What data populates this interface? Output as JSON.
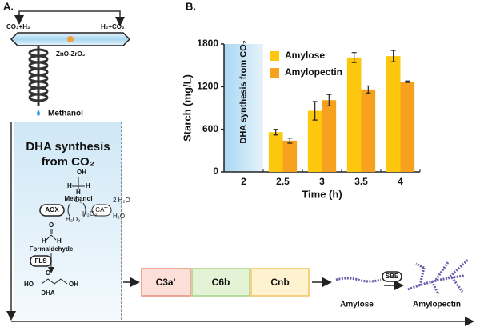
{
  "panel_labels": [
    "A.",
    "B."
  ],
  "diagram": {
    "feed_left": "CO₂+H₂",
    "feed_right": "H₂+CO₂",
    "catalyst": "ZnO-ZrO₂",
    "product": "Methanol",
    "box_title": [
      "DHA synthesis",
      "from CO₂"
    ],
    "methanol_atoms": [
      "OH",
      "H",
      "H",
      "H"
    ],
    "methanol": "Methanol",
    "aox": "AOX",
    "cat": "CAT",
    "o2": "O₂",
    "h2o_2": "2 H₂O",
    "h2o2_a": "H₂O₂",
    "h2o2_b": "H₂O₂",
    "h2o": "H₂O",
    "formaldehyde_atoms": [
      "O",
      "H",
      "H"
    ],
    "formaldehyde": "Formaldehyde",
    "fls": "FLS",
    "dha_atoms": [
      "HO",
      "O",
      "OH"
    ],
    "dha": "DHA",
    "enzymes": [
      "C3a'",
      "C6b",
      "Cnb"
    ],
    "amylose": "Amylose",
    "sbe": "SBE",
    "amylopectin": "Amylopectin"
  },
  "chart_data": {
    "type": "bar",
    "annotation": "DHA synthesis from CO₂",
    "x_label": "Time (h)",
    "y_label": "Starch (mg/L)",
    "categories": [
      "2",
      "2.5",
      "3",
      "3.5",
      "4"
    ],
    "series": [
      {
        "name": "Amylose",
        "color": "#fcc70c",
        "values": [
          null,
          560,
          860,
          1610,
          1630
        ],
        "errors": [
          null,
          40,
          130,
          70,
          80
        ]
      },
      {
        "name": "Amylopectin",
        "color": "#f7a21e",
        "values": [
          null,
          440,
          1010,
          1160,
          1270
        ],
        "errors": [
          null,
          35,
          80,
          50,
          10
        ]
      }
    ],
    "ylim": [
      0,
      1800
    ],
    "yticks": [
      0,
      600,
      1200,
      1800
    ]
  }
}
